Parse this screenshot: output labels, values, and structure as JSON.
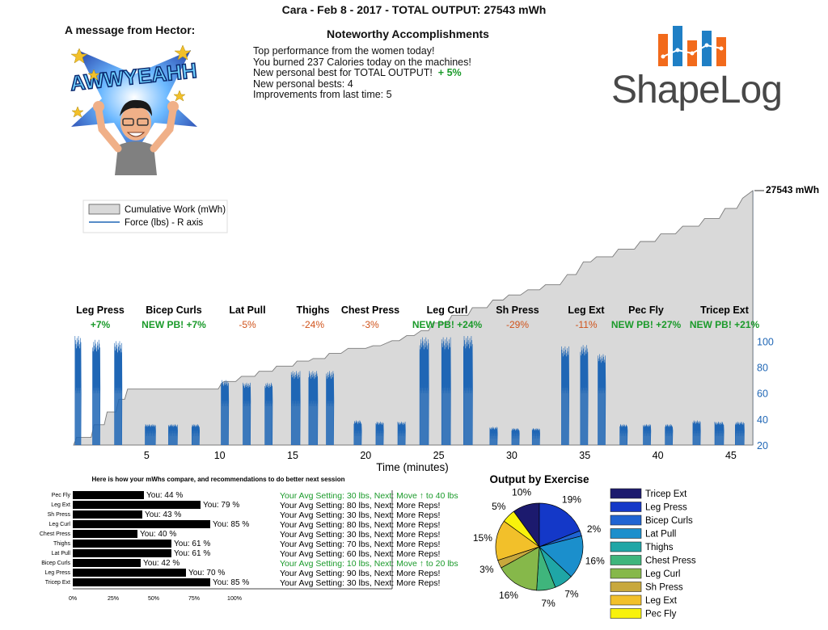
{
  "header": {
    "title": "Cara  -  Feb 8 - 2017  -  TOTAL OUTPUT: 27543 mWh",
    "message_title": "A message from Hector:",
    "sticker_text": "AWWYEAHH",
    "accomplishments_title": "Noteworthy Accomplishments",
    "accomplishments": [
      "Top performance from the women today!",
      "You burned 237 Calories today on the machines!",
      "New personal best for TOTAL OUTPUT!",
      "New personal bests: 4",
      "Improvements from last time: 5"
    ],
    "total_pb_delta": "+ 5%",
    "logo_text": "ShapeLog"
  },
  "colors": {
    "force": "#1f66b5",
    "cumulative_fill": "#d9d9d9",
    "green": "#1a9a2a",
    "orange": "#d0531b",
    "axis_blue": "#1f66b5"
  },
  "chart_data": [
    {
      "type": "area",
      "title": "",
      "xlabel": "Time (minutes)",
      "ylabel_right": "",
      "xlim": [
        0,
        46.5
      ],
      "xticks": [
        5,
        10,
        15,
        20,
        25,
        30,
        35,
        40,
        45
      ],
      "ylim_right": [
        20,
        104
      ],
      "yticks_right": [
        20,
        40,
        60,
        80,
        100
      ],
      "legend": {
        "placement": "top-left",
        "entries": [
          "Cumulative Work (mWh)",
          "Force (lbs) - R axis"
        ]
      },
      "final_value_label": "27543 mWh",
      "cumulative_series": {
        "name": "Cumulative Work (mWh)",
        "x": [
          0,
          0.2,
          1.2,
          1.4,
          2.1,
          2.3,
          2.9,
          3.1,
          3.5,
          3.7,
          9.9,
          10.1,
          10.3,
          11.1,
          11.5,
          12.4,
          12.7,
          13.6,
          13.9,
          15.0,
          15.3,
          16.1,
          16.4,
          17.2,
          17.5,
          18.3,
          18.8,
          20.0,
          20.5,
          21.0,
          21.8,
          22.3,
          22.8,
          23.3,
          23.8,
          24.3,
          24.6,
          25.6,
          25.9,
          27.0,
          27.3,
          28.3,
          28.7,
          29.4,
          29.8,
          30.6,
          31.1,
          31.9,
          32.3,
          33.3,
          33.8,
          34.4,
          34.9,
          35.4,
          35.8,
          36.9,
          37.3,
          38.4,
          38.8,
          39.8,
          40.2,
          41.2,
          41.7,
          42.8,
          43.2,
          44.2,
          44.6,
          45.4,
          45.8,
          46.5
        ],
        "y_fraction": [
          0,
          0.03,
          0.03,
          0.08,
          0.08,
          0.13,
          0.13,
          0.18,
          0.18,
          0.22,
          0.22,
          0.24,
          0.25,
          0.25,
          0.27,
          0.27,
          0.29,
          0.29,
          0.31,
          0.31,
          0.33,
          0.33,
          0.34,
          0.34,
          0.36,
          0.36,
          0.38,
          0.38,
          0.39,
          0.39,
          0.41,
          0.41,
          0.43,
          0.43,
          0.45,
          0.45,
          0.48,
          0.48,
          0.51,
          0.51,
          0.54,
          0.54,
          0.57,
          0.57,
          0.59,
          0.59,
          0.61,
          0.61,
          0.63,
          0.63,
          0.67,
          0.67,
          0.72,
          0.72,
          0.74,
          0.74,
          0.77,
          0.77,
          0.8,
          0.8,
          0.83,
          0.83,
          0.86,
          0.86,
          0.89,
          0.89,
          0.93,
          0.93,
          0.97,
          1.0
        ]
      },
      "force_series": {
        "name": "Force (lbs) - R axis",
        "sets": [
          {
            "start": 0.1,
            "end": 0.5,
            "min": 60,
            "max": 104
          },
          {
            "start": 1.3,
            "end": 1.8,
            "min": 60,
            "max": 101
          },
          {
            "start": 2.8,
            "end": 3.3,
            "min": 60,
            "max": 100
          },
          {
            "start": 4.9,
            "end": 5.6,
            "min": 27,
            "max": 36
          },
          {
            "start": 6.5,
            "end": 7.1,
            "min": 27,
            "max": 36
          },
          {
            "start": 8.1,
            "end": 8.6,
            "min": 27,
            "max": 36
          },
          {
            "start": 10.1,
            "end": 10.6,
            "min": 50,
            "max": 70
          },
          {
            "start": 11.6,
            "end": 12.1,
            "min": 50,
            "max": 68
          },
          {
            "start": 13.1,
            "end": 13.6,
            "min": 50,
            "max": 68
          },
          {
            "start": 14.9,
            "end": 15.5,
            "min": 50,
            "max": 77
          },
          {
            "start": 16.1,
            "end": 16.7,
            "min": 50,
            "max": 77
          },
          {
            "start": 17.3,
            "end": 17.8,
            "min": 50,
            "max": 77
          },
          {
            "start": 19.2,
            "end": 19.7,
            "min": 27,
            "max": 39
          },
          {
            "start": 20.7,
            "end": 21.2,
            "min": 27,
            "max": 38
          },
          {
            "start": 22.2,
            "end": 22.7,
            "min": 27,
            "max": 38
          },
          {
            "start": 23.7,
            "end": 24.3,
            "min": 60,
            "max": 103
          },
          {
            "start": 25.2,
            "end": 25.8,
            "min": 60,
            "max": 103
          },
          {
            "start": 26.7,
            "end": 27.3,
            "min": 60,
            "max": 104
          },
          {
            "start": 28.5,
            "end": 29.0,
            "min": 25,
            "max": 34
          },
          {
            "start": 30.0,
            "end": 30.5,
            "min": 25,
            "max": 33
          },
          {
            "start": 31.4,
            "end": 31.9,
            "min": 25,
            "max": 33
          },
          {
            "start": 33.4,
            "end": 33.9,
            "min": 60,
            "max": 96
          },
          {
            "start": 34.7,
            "end": 35.2,
            "min": 60,
            "max": 97
          },
          {
            "start": 35.9,
            "end": 36.4,
            "min": 60,
            "max": 90
          },
          {
            "start": 37.4,
            "end": 37.9,
            "min": 27,
            "max": 36
          },
          {
            "start": 39.0,
            "end": 39.5,
            "min": 27,
            "max": 36
          },
          {
            "start": 40.5,
            "end": 41.0,
            "min": 27,
            "max": 36
          },
          {
            "start": 42.4,
            "end": 42.9,
            "min": 27,
            "max": 39
          },
          {
            "start": 43.9,
            "end": 44.5,
            "min": 27,
            "max": 38
          },
          {
            "start": 45.3,
            "end": 45.9,
            "min": 27,
            "max": 38
          }
        ]
      },
      "annotations": [
        {
          "name": "Leg Press",
          "delta": "+7%",
          "status": "green"
        },
        {
          "name": "Bicep Curls",
          "delta": "NEW PB! +7%",
          "status": "green"
        },
        {
          "name": "Lat Pull",
          "delta": "-5%",
          "status": "orange"
        },
        {
          "name": "Thighs",
          "delta": "-24%",
          "status": "orange"
        },
        {
          "name": "Chest Press",
          "delta": "-3%",
          "status": "orange"
        },
        {
          "name": "Leg Curl",
          "delta": "NEW PB! +24%",
          "status": "green"
        },
        {
          "name": "Sh Press",
          "delta": "-29%",
          "status": "orange"
        },
        {
          "name": "Leg Ext",
          "delta": "-11%",
          "status": "orange"
        },
        {
          "name": "Pec Fly",
          "delta": "NEW PB! +27%",
          "status": "green"
        },
        {
          "name": "Tricep Ext",
          "delta": "NEW PB! +21%",
          "status": "green"
        }
      ]
    },
    {
      "type": "bar",
      "title": "Here is how your mWhs compare, and recommendations to do better next session",
      "orientation": "horizontal",
      "xlim": [
        0,
        100
      ],
      "xticks": [
        "0%",
        "25%",
        "50%",
        "75%",
        "100%"
      ],
      "categories": [
        "Pec Fly",
        "Leg Ext",
        "Sh Press",
        "Leg Curl",
        "Chest Press",
        "Thighs",
        "Lat Pull",
        "Bicep Curls",
        "Leg Press",
        "Tricep Ext"
      ],
      "values": [
        44,
        79,
        43,
        85,
        40,
        61,
        61,
        42,
        70,
        85
      ],
      "value_labels": [
        "You: 44 %",
        "You: 79 %",
        "You: 43 %",
        "You: 85 %",
        "You: 40 %",
        "You: 61 %",
        "You: 61 %",
        "You: 42 %",
        "You: 70 %",
        "You: 85 %"
      ],
      "recommendations": [
        {
          "text": "Your Avg Setting: 30 lbs, Next: Move ↑ to 40 lbs",
          "status": "green"
        },
        {
          "text": "Your Avg Setting: 80 lbs, Next: More Reps!",
          "status": "black"
        },
        {
          "text": "Your Avg Setting: 30 lbs, Next: More Reps!",
          "status": "black"
        },
        {
          "text": "Your Avg Setting: 80 lbs, Next: More Reps!",
          "status": "black"
        },
        {
          "text": "Your Avg Setting: 30 lbs, Next: More Reps!",
          "status": "black"
        },
        {
          "text": "Your Avg Setting: 70 lbs, Next: More Reps!",
          "status": "black"
        },
        {
          "text": "Your Avg Setting: 60 lbs, Next: More Reps!",
          "status": "black"
        },
        {
          "text": "Your Avg Setting: 10 lbs, Next: Move ↑ to 20 lbs",
          "status": "green"
        },
        {
          "text": "Your Avg Setting: 90 lbs, Next: More Reps!",
          "status": "black"
        },
        {
          "text": "Your Avg Setting: 30 lbs, Next: More Reps!",
          "status": "black"
        }
      ]
    },
    {
      "type": "pie",
      "title": "Output by Exercise",
      "legend": {
        "placement": "right"
      },
      "labels": [
        "Tricep Ext",
        "Leg Press",
        "Bicep Curls",
        "Lat Pull",
        "Thighs",
        "Chest Press",
        "Leg Curl",
        "Sh Press",
        "Leg Ext",
        "Pec Fly"
      ],
      "values": [
        10,
        19,
        2,
        16,
        7,
        7,
        16,
        3,
        15,
        5
      ],
      "value_labels": [
        "10%",
        "19%",
        "2%",
        "16%",
        "7%",
        "7%",
        "16%",
        "3%",
        "15%",
        "5%"
      ],
      "colors": [
        "#1c1a6e",
        "#1438c8",
        "#1f64d2",
        "#1b8fcc",
        "#1fa6a6",
        "#3fb57c",
        "#86b84a",
        "#c8a83c",
        "#f2c02a",
        "#f8f20c"
      ]
    }
  ]
}
